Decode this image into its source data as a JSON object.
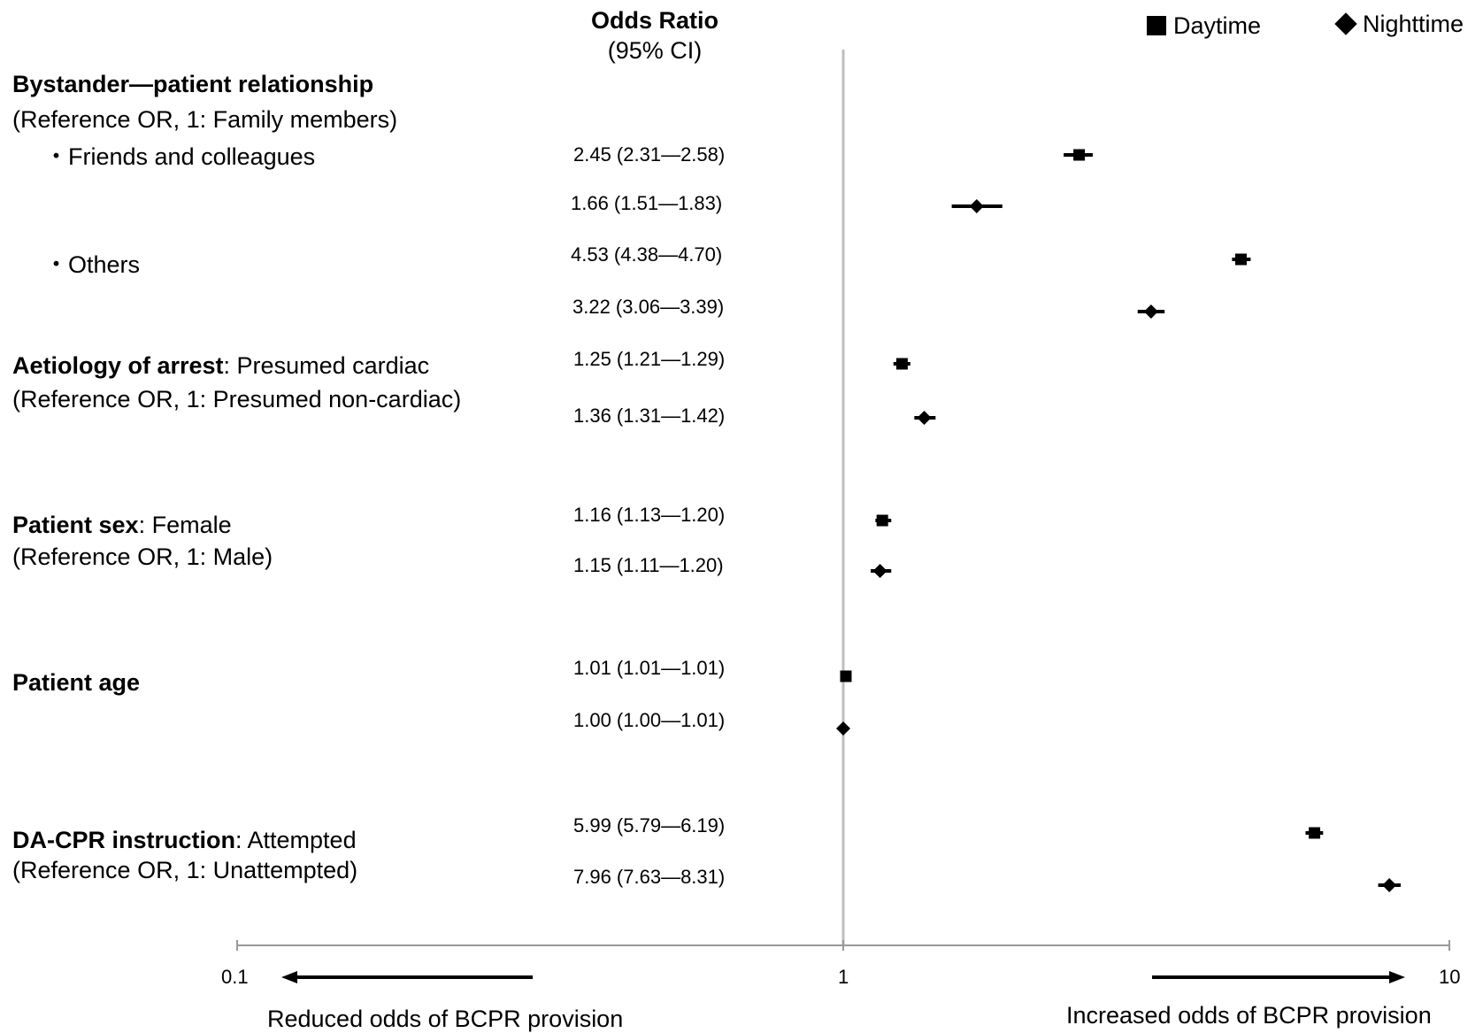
{
  "chart_data": {
    "type": "forest",
    "header": {
      "title": "Odds Ratio",
      "subtitle": "(95% CI)"
    },
    "legend": [
      {
        "name": "Daytime",
        "marker": "square"
      },
      {
        "name": "Nighttime",
        "marker": "diamond"
      }
    ],
    "xaxis": {
      "scale": "log",
      "range": [
        0.1,
        10
      ],
      "ticks": [
        "0.1",
        "1",
        "10"
      ],
      "reference": 1
    },
    "direction_labels": {
      "left": "Reduced odds of BCPR provision",
      "right": "Increased odds of BCPR provision"
    },
    "groups": [
      {
        "title": "Bystander—patient relationship",
        "title_suffix": "",
        "reference": "(Reference OR, 1: Family members)"
      },
      {
        "title": "Aetiology of arrest",
        "title_suffix": ": Presumed cardiac",
        "reference": "(Reference OR, 1: Presumed non-cardiac)"
      },
      {
        "title": "Patient sex",
        "title_suffix": ": Female",
        "reference": "(Reference OR, 1: Male)"
      },
      {
        "title": "Patient age",
        "title_suffix": "",
        "reference": ""
      },
      {
        "title": "DA-CPR instruction",
        "title_suffix": ": Attempted",
        "reference": "(Reference OR, 1: Unattempted)"
      }
    ],
    "sublabels": [
      "・Friends and colleagues",
      "・Others"
    ],
    "rows": [
      {
        "group": "Bystander—patient relationship",
        "category": "Friends and colleagues",
        "series": "Daytime",
        "or": 2.45,
        "lo": 2.31,
        "hi": 2.58,
        "text": "2.45 (2.31—2.58)"
      },
      {
        "group": "Bystander—patient relationship",
        "category": "Friends and colleagues",
        "series": "Nighttime",
        "or": 1.66,
        "lo": 1.51,
        "hi": 1.83,
        "text": "1.66 (1.51—1.83)"
      },
      {
        "group": "Bystander—patient relationship",
        "category": "Others",
        "series": "Daytime",
        "or": 4.53,
        "lo": 4.38,
        "hi": 4.7,
        "text": "4.53 (4.38—4.70)"
      },
      {
        "group": "Bystander—patient relationship",
        "category": "Others",
        "series": "Nighttime",
        "or": 3.22,
        "lo": 3.06,
        "hi": 3.39,
        "text": "3.22 (3.06—3.39)"
      },
      {
        "group": "Aetiology of arrest",
        "category": "Presumed cardiac",
        "series": "Daytime",
        "or": 1.25,
        "lo": 1.21,
        "hi": 1.29,
        "text": "1.25 (1.21—1.29)"
      },
      {
        "group": "Aetiology of arrest",
        "category": "Presumed cardiac",
        "series": "Nighttime",
        "or": 1.36,
        "lo": 1.31,
        "hi": 1.42,
        "text": "1.36 (1.31—1.42)"
      },
      {
        "group": "Patient sex",
        "category": "Female",
        "series": "Daytime",
        "or": 1.16,
        "lo": 1.13,
        "hi": 1.2,
        "text": "1.16 (1.13—1.20)"
      },
      {
        "group": "Patient sex",
        "category": "Female",
        "series": "Nighttime",
        "or": 1.15,
        "lo": 1.11,
        "hi": 1.2,
        "text": "1.15 (1.11—1.20)"
      },
      {
        "group": "Patient age",
        "category": "Patient age",
        "series": "Daytime",
        "or": 1.01,
        "lo": 1.01,
        "hi": 1.01,
        "text": "1.01 (1.01—1.01)"
      },
      {
        "group": "Patient age",
        "category": "Patient age",
        "series": "Nighttime",
        "or": 1.0,
        "lo": 1.0,
        "hi": 1.01,
        "text": "1.00 (1.00—1.01)"
      },
      {
        "group": "DA-CPR instruction",
        "category": "Attempted",
        "series": "Daytime",
        "or": 5.99,
        "lo": 5.79,
        "hi": 6.19,
        "text": "5.99 (5.79—6.19)"
      },
      {
        "group": "DA-CPR instruction",
        "category": "Attempted",
        "series": "Nighttime",
        "or": 7.96,
        "lo": 7.63,
        "hi": 8.31,
        "text": "7.96 (7.63—8.31)"
      }
    ],
    "grid": false,
    "legend_position": "top-right",
    "colors": {
      "marks": "#000000",
      "reference_line": "#bfbfbf",
      "axis": "#999999"
    }
  }
}
